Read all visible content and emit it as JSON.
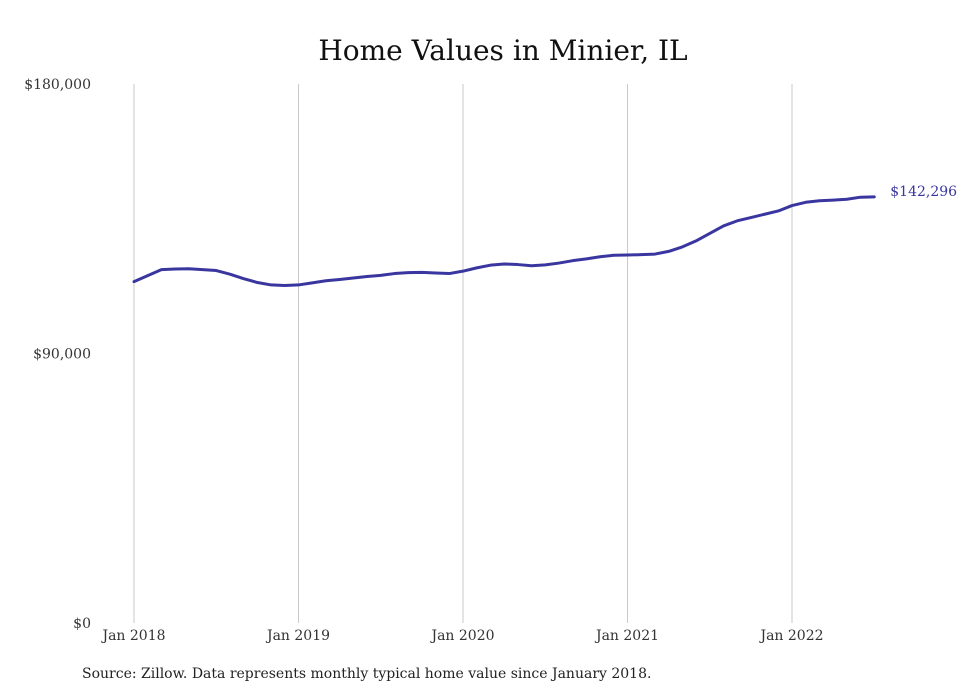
{
  "chart_data": {
    "type": "line",
    "title": "Home Values in Minier, IL",
    "xlabel": "",
    "ylabel": "",
    "ylim": [
      0,
      180000
    ],
    "y_ticks": [
      {
        "value": 0,
        "label": "$0"
      },
      {
        "value": 90000,
        "label": "$90,000"
      },
      {
        "value": 180000,
        "label": "$180,000"
      }
    ],
    "x_ticks": [
      {
        "value": 2018,
        "label": "Jan 2018"
      },
      {
        "value": 2019,
        "label": "Jan 2019"
      },
      {
        "value": 2020,
        "label": "Jan 2020"
      },
      {
        "value": 2021,
        "label": "Jan 2021"
      },
      {
        "value": 2022,
        "label": "Jan 2022"
      }
    ],
    "grid": "vertical",
    "series": [
      {
        "color": "#3a36a0",
        "end_label": "$142,296",
        "x": [
          "2018-01",
          "2018-02",
          "2018-03",
          "2018-04",
          "2018-05",
          "2018-06",
          "2018-07",
          "2018-08",
          "2018-09",
          "2018-10",
          "2018-11",
          "2018-12",
          "2019-01",
          "2019-02",
          "2019-03",
          "2019-04",
          "2019-05",
          "2019-06",
          "2019-07",
          "2019-08",
          "2019-09",
          "2019-10",
          "2019-11",
          "2019-12",
          "2020-01",
          "2020-02",
          "2020-03",
          "2020-04",
          "2020-05",
          "2020-06",
          "2020-07",
          "2020-08",
          "2020-09",
          "2020-10",
          "2020-11",
          "2020-12",
          "2021-01",
          "2021-02",
          "2021-03",
          "2021-04",
          "2021-05",
          "2021-06",
          "2021-07",
          "2021-08",
          "2021-09",
          "2021-10",
          "2021-11",
          "2021-12",
          "2022-01",
          "2022-02",
          "2022-03",
          "2022-04",
          "2022-05",
          "2022-06",
          "2022-07"
        ],
        "values": [
          114000,
          116000,
          118000,
          118200,
          118300,
          118000,
          117700,
          116500,
          115000,
          113700,
          112900,
          112700,
          112900,
          113600,
          114300,
          114700,
          115200,
          115700,
          116100,
          116700,
          117000,
          117100,
          116900,
          116700,
          117500,
          118600,
          119500,
          119900,
          119700,
          119300,
          119600,
          120200,
          121000,
          121600,
          122300,
          122800,
          122900,
          123000,
          123200,
          124100,
          125600,
          127600,
          130100,
          132600,
          134300,
          135400,
          136500,
          137600,
          139400,
          140500,
          141000,
          141200,
          141500,
          142200,
          142296
        ]
      }
    ]
  },
  "source_note": "Source: Zillow. Data represents monthly typical home value since January 2018."
}
